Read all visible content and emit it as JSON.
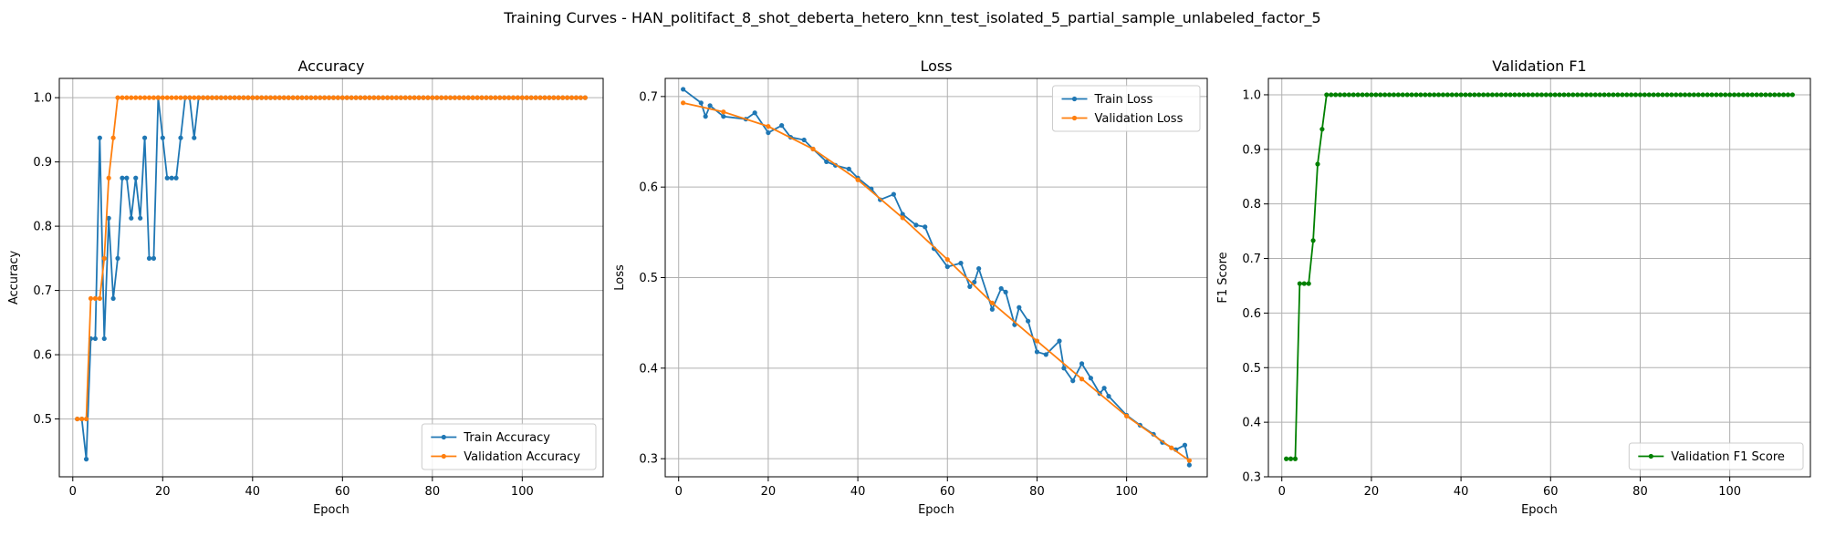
{
  "figure": {
    "title": "Training Curves - HAN_politifact_8_shot_deberta_hetero_knn_test_isolated_5_partial_sample_unlabeled_factor_5"
  },
  "colors": {
    "train": "#1f77b4",
    "validation": "#ff7f0e",
    "f1": "#008000",
    "grid": "#b0b0b0"
  },
  "chart_data": [
    {
      "type": "line",
      "title": "Accuracy",
      "xlabel": "Epoch",
      "ylabel": "Accuracy",
      "xlim": [
        -3,
        118
      ],
      "ylim": [
        0.41,
        1.03
      ],
      "xticks": [
        0,
        20,
        40,
        60,
        80,
        100
      ],
      "yticks": [
        0.5,
        0.6,
        0.7,
        0.8,
        0.9,
        1.0
      ],
      "ytick_labels": [
        "0.5",
        "0.6",
        "0.7",
        "0.8",
        "0.9",
        "1.0"
      ],
      "grid": true,
      "legend": "lower right",
      "series": [
        {
          "name": "Train Accuracy",
          "color": "#1f77b4",
          "x": [
            1,
            2,
            3,
            4,
            5,
            6,
            7,
            8,
            9,
            10,
            11,
            12,
            13,
            14,
            15,
            16,
            17,
            18,
            19,
            20,
            21,
            22,
            23,
            24,
            25,
            26,
            27,
            28
          ],
          "y": [
            0.5,
            0.5,
            0.4375,
            0.625,
            0.625,
            0.9375,
            0.625,
            0.8125,
            0.6875,
            0.75,
            0.875,
            0.875,
            0.8125,
            0.875,
            0.8125,
            0.9375,
            0.75,
            0.75,
            1.0,
            0.9375,
            0.875,
            0.875,
            0.875,
            0.9375,
            1.0,
            1.0,
            0.9375,
            1.0
          ],
          "tail": {
            "from": 29,
            "to": 114,
            "value": 1.0
          }
        },
        {
          "name": "Validation Accuracy",
          "color": "#ff7f0e",
          "x": [
            1,
            2,
            3,
            4,
            5,
            6,
            7,
            8,
            9,
            10
          ],
          "y": [
            0.5,
            0.5,
            0.5,
            0.6875,
            0.6875,
            0.6875,
            0.75,
            0.875,
            0.9375,
            1.0
          ],
          "tail": {
            "from": 11,
            "to": 114,
            "value": 1.0
          }
        }
      ]
    },
    {
      "type": "line",
      "title": "Loss",
      "xlabel": "Epoch",
      "ylabel": "Loss",
      "xlim": [
        -3,
        118
      ],
      "ylim": [
        0.28,
        0.72
      ],
      "xticks": [
        0,
        20,
        40,
        60,
        80,
        100
      ],
      "yticks": [
        0.3,
        0.4,
        0.5,
        0.6,
        0.7
      ],
      "ytick_labels": [
        "0.3",
        "0.4",
        "0.5",
        "0.6",
        "0.7"
      ],
      "grid": true,
      "legend": "upper right",
      "series": [
        {
          "name": "Train Loss",
          "color": "#1f77b4",
          "x": [
            1,
            5,
            6,
            7,
            10,
            15,
            17,
            20,
            23,
            25,
            28,
            30,
            33,
            35,
            38,
            40,
            43,
            45,
            48,
            50,
            53,
            55,
            57,
            60,
            63,
            65,
            66,
            67,
            70,
            72,
            73,
            75,
            76,
            78,
            80,
            82,
            85,
            86,
            88,
            90,
            92,
            94,
            95,
            96,
            100,
            103,
            106,
            108,
            111,
            113,
            114
          ],
          "y": [
            0.708,
            0.693,
            0.678,
            0.69,
            0.678,
            0.675,
            0.682,
            0.66,
            0.668,
            0.655,
            0.652,
            0.642,
            0.628,
            0.624,
            0.62,
            0.61,
            0.598,
            0.586,
            0.592,
            0.57,
            0.558,
            0.556,
            0.532,
            0.512,
            0.516,
            0.49,
            0.495,
            0.51,
            0.465,
            0.488,
            0.484,
            0.448,
            0.467,
            0.452,
            0.418,
            0.415,
            0.43,
            0.4,
            0.386,
            0.405,
            0.389,
            0.372,
            0.378,
            0.369,
            0.348,
            0.337,
            0.327,
            0.318,
            0.31,
            0.315,
            0.293
          ]
        },
        {
          "name": "Validation Loss",
          "color": "#ff7f0e",
          "x": [
            1,
            10,
            20,
            30,
            40,
            50,
            60,
            70,
            80,
            90,
            100,
            110,
            114
          ],
          "y": [
            0.693,
            0.683,
            0.667,
            0.642,
            0.608,
            0.566,
            0.52,
            0.472,
            0.43,
            0.388,
            0.347,
            0.312,
            0.298
          ]
        }
      ]
    },
    {
      "type": "line",
      "title": "Validation F1",
      "xlabel": "Epoch",
      "ylabel": "F1 Score",
      "xlim": [
        -3,
        118
      ],
      "ylim": [
        0.3,
        1.03
      ],
      "xticks": [
        0,
        20,
        40,
        60,
        80,
        100
      ],
      "yticks": [
        0.3,
        0.4,
        0.5,
        0.6,
        0.7,
        0.8,
        0.9,
        1.0
      ],
      "ytick_labels": [
        "0.3",
        "0.4",
        "0.5",
        "0.6",
        "0.7",
        "0.8",
        "0.9",
        "1.0"
      ],
      "grid": true,
      "legend": "lower right",
      "series": [
        {
          "name": "Validation F1 Score",
          "color": "#008000",
          "x": [
            1,
            2,
            3,
            4,
            5,
            6,
            7,
            8,
            9,
            10
          ],
          "y": [
            0.333,
            0.333,
            0.333,
            0.654,
            0.654,
            0.654,
            0.733,
            0.873,
            0.937,
            1.0
          ],
          "tail": {
            "from": 11,
            "to": 114,
            "value": 1.0
          }
        }
      ]
    }
  ]
}
